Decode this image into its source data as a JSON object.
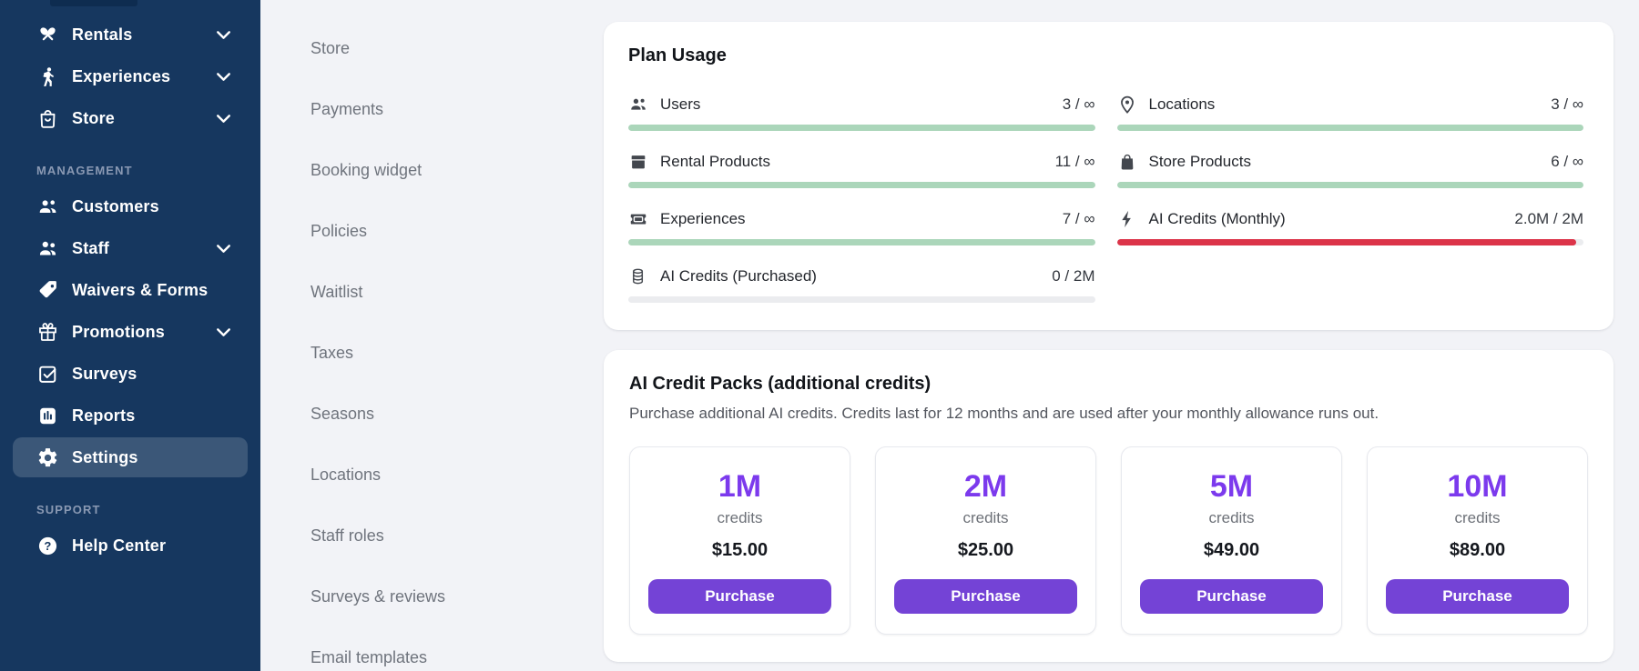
{
  "colors": {
    "sidebar_bg": "#16375f",
    "accent_purple": "#7c3aed",
    "button_purple": "#7443d6",
    "bar_green": "#abd6ba",
    "bar_red": "#dc3449"
  },
  "sidebar": {
    "sections": [
      {
        "label": "",
        "items": [
          {
            "label": "Rentals",
            "icon": "rentals",
            "chevron": true,
            "active": false
          },
          {
            "label": "Experiences",
            "icon": "experiences",
            "chevron": true,
            "active": false
          },
          {
            "label": "Store",
            "icon": "store-bag",
            "chevron": true,
            "active": false
          }
        ]
      },
      {
        "label": "MANAGEMENT",
        "items": [
          {
            "label": "Customers",
            "icon": "users-group",
            "chevron": false,
            "active": false
          },
          {
            "label": "Staff",
            "icon": "staff",
            "chevron": true,
            "active": false
          },
          {
            "label": "Waivers & Forms",
            "icon": "tag",
            "chevron": false,
            "active": false
          },
          {
            "label": "Promotions",
            "icon": "gift",
            "chevron": true,
            "active": false
          },
          {
            "label": "Surveys",
            "icon": "survey-check",
            "chevron": false,
            "active": false
          },
          {
            "label": "Reports",
            "icon": "report-bars",
            "chevron": false,
            "active": false
          },
          {
            "label": "Settings",
            "icon": "gear",
            "chevron": false,
            "active": true
          }
        ]
      },
      {
        "label": "SUPPORT",
        "items": [
          {
            "label": "Help Center",
            "icon": "help-circle",
            "chevron": false,
            "active": false
          }
        ]
      }
    ]
  },
  "submenu": {
    "items": [
      "Store",
      "Payments",
      "Booking widget",
      "Policies",
      "Waitlist",
      "Taxes",
      "Seasons",
      "Locations",
      "Staff roles",
      "Surveys & reviews",
      "Email templates"
    ]
  },
  "plan_usage": {
    "title": "Plan Usage",
    "columns": [
      [
        {
          "icon": "users-group",
          "label": "Users",
          "value": "3 / ∞",
          "fill_pct": 100,
          "color": "green"
        },
        {
          "icon": "box",
          "label": "Rental Products",
          "value": "11 / ∞",
          "fill_pct": 100,
          "color": "green"
        },
        {
          "icon": "ticket",
          "label": "Experiences",
          "value": "7 / ∞",
          "fill_pct": 100,
          "color": "green"
        },
        {
          "icon": "coins",
          "label": "AI Credits (Purchased)",
          "value": "0 / 2M",
          "fill_pct": 0,
          "color": "green"
        }
      ],
      [
        {
          "icon": "pin",
          "label": "Locations",
          "value": "3 / ∞",
          "fill_pct": 100,
          "color": "green"
        },
        {
          "icon": "bag-solid",
          "label": "Store Products",
          "value": "6 / ∞",
          "fill_pct": 100,
          "color": "green"
        },
        {
          "icon": "bolt",
          "label": "AI Credits (Monthly)",
          "value": "2.0M / 2M",
          "fill_pct": 98.5,
          "color": "red"
        }
      ]
    ]
  },
  "credit_packs": {
    "title": "AI Credit Packs (additional credits)",
    "description": "Purchase additional AI credits. Credits last for 12 months and are used after your monthly allowance runs out.",
    "packs": [
      {
        "amount": "1M",
        "unit": "credits",
        "price": "$15.00",
        "button": "Purchase"
      },
      {
        "amount": "2M",
        "unit": "credits",
        "price": "$25.00",
        "button": "Purchase"
      },
      {
        "amount": "5M",
        "unit": "credits",
        "price": "$49.00",
        "button": "Purchase"
      },
      {
        "amount": "10M",
        "unit": "credits",
        "price": "$89.00",
        "button": "Purchase"
      }
    ]
  }
}
